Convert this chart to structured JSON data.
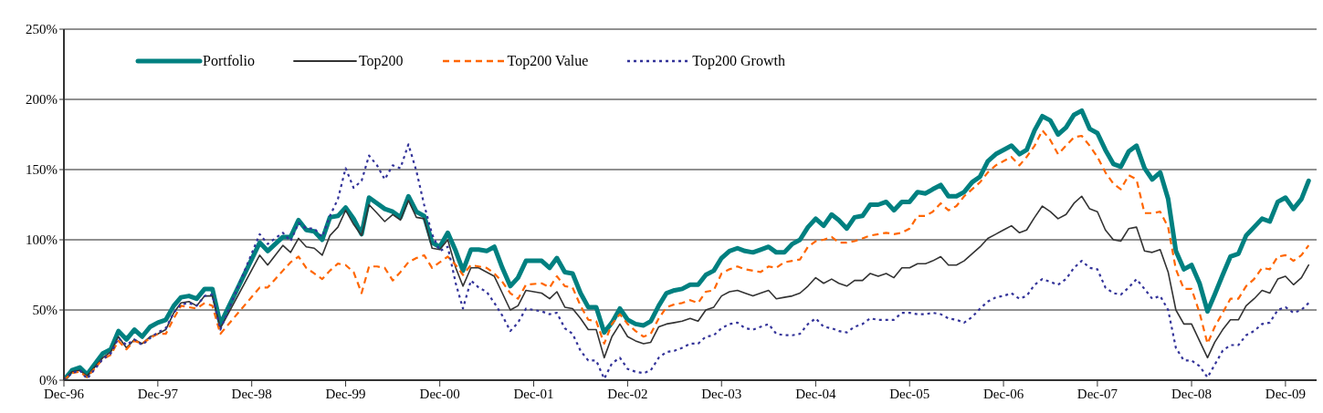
{
  "chart_data": {
    "type": "line",
    "x": [
      "1996-12",
      "1997-01",
      "1997-02",
      "1997-03",
      "1997-05",
      "1997-06",
      "1997-07",
      "1997-08",
      "1997-09",
      "1997-10",
      "1997-11",
      "1997-12",
      "1998-01",
      "1998-02",
      "1998-03",
      "1998-04",
      "1998-05",
      "1998-06",
      "1998-07",
      "1998-08",
      "1999-01",
      "1999-02",
      "1999-04",
      "1999-05",
      "1999-06",
      "1999-07",
      "1999-08",
      "1999-09",
      "1999-10",
      "1999-11",
      "1999-12",
      "2000-01",
      "2000-02",
      "2000-03",
      "2000-04",
      "2000-05",
      "2000-06",
      "2000-07",
      "2000-08",
      "2000-09",
      "2000-10",
      "2000-11",
      "2000-12",
      "2001-01",
      "2001-02",
      "2001-03",
      "2001-04",
      "2001-05",
      "2001-06",
      "2001-07",
      "2001-08",
      "2001-09",
      "2001-10",
      "2001-11",
      "2002-01",
      "2002-02",
      "2002-03",
      "2002-04",
      "2002-05",
      "2002-06",
      "2002-07",
      "2002-08",
      "2002-09",
      "2002-10",
      "2002-11",
      "2002-12",
      "2003-01",
      "2003-02",
      "2003-03",
      "2003-04",
      "2003-05",
      "2003-06",
      "2003-07",
      "2003-08",
      "2003-09",
      "2003-10",
      "2003-11",
      "2003-12",
      "2004-01",
      "2004-02",
      "2004-03",
      "2004-04",
      "2004-05",
      "2004-06",
      "2004-07",
      "2004-08",
      "2004-09",
      "2004-10",
      "2004-11",
      "2004-12",
      "2005-01",
      "2005-02",
      "2005-03",
      "2005-04",
      "2005-05",
      "2005-06",
      "2005-07",
      "2005-08",
      "2005-09",
      "2005-10",
      "2005-11",
      "2005-12",
      "2006-01",
      "2006-02",
      "2006-03",
      "2006-04",
      "2006-05",
      "2006-06",
      "2006-07",
      "2006-08",
      "2006-09",
      "2006-10",
      "2006-11",
      "2006-12",
      "2007-01",
      "2007-02",
      "2007-03",
      "2007-04",
      "2007-05",
      "2007-06",
      "2007-07",
      "2007-08",
      "2007-09",
      "2007-10",
      "2007-11",
      "2007-12",
      "2008-01",
      "2008-02",
      "2008-03",
      "2008-04",
      "2008-05",
      "2008-06",
      "2008-07",
      "2008-08",
      "2008-09",
      "2008-10",
      "2008-11",
      "2008-12",
      "2009-01",
      "2009-02",
      "2009-03",
      "2009-04",
      "2009-05",
      "2009-06",
      "2009-07",
      "2009-08",
      "2009-09",
      "2009-10",
      "2009-11",
      "2009-12",
      "2010-01",
      "2010-02",
      "2010-03"
    ],
    "series": [
      {
        "name": "Portfolio",
        "color": "#008080",
        "line_style": "solid",
        "values": [
          0,
          7,
          9,
          4,
          19,
          22,
          35,
          29,
          36,
          31,
          38,
          41,
          43,
          53,
          59,
          60,
          58,
          65,
          65,
          40,
          98,
          92,
          102,
          102,
          114,
          107,
          106,
          100,
          116,
          117,
          123,
          115,
          104,
          130,
          126,
          122,
          120,
          116,
          131,
          120,
          117,
          98,
          95,
          105,
          92,
          78,
          93,
          93,
          92,
          95,
          80,
          67,
          73,
          85,
          85,
          80,
          87,
          77,
          76,
          62,
          52,
          52,
          34,
          41,
          51,
          43,
          40,
          39,
          42,
          53,
          62,
          64,
          65,
          68,
          68,
          75,
          78,
          87,
          92,
          94,
          92,
          91,
          93,
          95,
          91,
          91,
          97,
          100,
          109,
          115,
          110,
          118,
          114,
          108,
          116,
          117,
          125,
          125,
          127,
          121,
          127,
          127,
          134,
          133,
          136,
          139,
          131,
          131,
          134,
          141,
          145,
          156,
          161,
          164,
          167,
          161,
          164,
          178,
          188,
          185,
          175,
          180,
          189,
          192,
          179,
          176,
          164,
          154,
          152,
          163,
          167,
          151,
          143,
          148,
          129,
          92,
          79,
          82,
          69,
          49,
          61,
          75,
          88,
          90,
          103,
          109,
          115,
          113,
          127,
          130,
          122,
          129,
          142
        ]
      },
      {
        "name": "Top200",
        "color": "#333333",
        "line_style": "solid",
        "values": [
          0,
          6,
          7,
          3,
          16,
          20,
          31,
          23,
          29,
          26,
          31,
          33,
          36,
          48,
          55,
          56,
          53,
          60,
          60,
          37,
          89,
          82,
          96,
          91,
          101,
          95,
          94,
          89,
          103,
          109,
          121,
          111,
          103,
          125,
          119,
          113,
          118,
          114,
          128,
          116,
          115,
          94,
          93,
          100,
          80,
          67,
          80,
          80,
          77,
          74,
          62,
          50,
          53,
          64,
          62,
          58,
          63,
          52,
          51,
          44,
          36,
          36,
          16,
          31,
          40,
          31,
          28,
          26,
          27,
          38,
          40,
          41,
          42,
          44,
          42,
          50,
          52,
          60,
          63,
          64,
          62,
          60,
          62,
          64,
          58,
          59,
          60,
          62,
          67,
          73,
          69,
          72,
          69,
          67,
          71,
          71,
          76,
          74,
          76,
          73,
          80,
          80,
          83,
          83,
          85,
          88,
          82,
          82,
          85,
          90,
          95,
          101,
          104,
          107,
          110,
          105,
          107,
          116,
          124,
          120,
          115,
          118,
          126,
          131,
          122,
          120,
          107,
          100,
          99,
          108,
          109,
          92,
          91,
          93,
          77,
          50,
          40,
          40,
          28,
          16,
          27,
          36,
          43,
          43,
          53,
          58,
          64,
          62,
          72,
          74,
          68,
          73,
          82
        ]
      },
      {
        "name": "Top200 Value",
        "color": "#ff6600",
        "line_style": "dashed",
        "values": [
          0,
          5,
          6,
          2,
          15,
          18,
          28,
          22,
          28,
          26,
          30,
          33,
          33,
          44,
          53,
          52,
          51,
          55,
          53,
          33,
          66,
          66,
          78,
          84,
          88,
          80,
          76,
          72,
          78,
          83,
          82,
          77,
          62,
          81,
          81,
          80,
          71,
          77,
          84,
          87,
          89,
          80,
          84,
          88,
          82,
          75,
          82,
          81,
          80,
          76,
          70,
          62,
          58,
          68,
          69,
          66,
          74,
          67,
          66,
          53,
          43,
          42,
          26,
          40,
          47,
          40,
          35,
          31,
          33,
          44,
          52,
          54,
          55,
          57,
          55,
          63,
          64,
          76,
          79,
          81,
          79,
          78,
          77,
          81,
          80,
          84,
          85,
          86,
          95,
          99,
          100,
          102,
          98,
          98,
          99,
          101,
          103,
          104,
          105,
          104,
          105,
          108,
          117,
          117,
          120,
          126,
          121,
          124,
          131,
          136,
          141,
          148,
          153,
          156,
          159,
          153,
          159,
          167,
          178,
          171,
          161,
          167,
          173,
          174,
          167,
          159,
          148,
          140,
          136,
          146,
          143,
          119,
          119,
          120,
          109,
          79,
          65,
          65,
          48,
          26,
          38,
          48,
          58,
          58,
          67,
          72,
          80,
          79,
          88,
          89,
          85,
          89,
          96
        ]
      },
      {
        "name": "Top200 Growth",
        "color": "#333399",
        "line_style": "dotted",
        "values": [
          0,
          5,
          7,
          1,
          15,
          19,
          30,
          25,
          29,
          25,
          30,
          34,
          37,
          48,
          54,
          55,
          53,
          60,
          61,
          36,
          104,
          97,
          105,
          99,
          112,
          108,
          108,
          102,
          117,
          129,
          151,
          137,
          142,
          160,
          153,
          143,
          153,
          151,
          168,
          149,
          125,
          104,
          92,
          95,
          69,
          51,
          71,
          66,
          63,
          55,
          46,
          35,
          41,
          51,
          49,
          47,
          48,
          37,
          33,
          21,
          14,
          14,
          1,
          12,
          16,
          8,
          6,
          5,
          7,
          16,
          20,
          21,
          23,
          26,
          26,
          31,
          32,
          37,
          40,
          41,
          37,
          36,
          38,
          40,
          33,
          32,
          32,
          33,
          40,
          44,
          38,
          37,
          35,
          34,
          38,
          40,
          44,
          43,
          43,
          43,
          48,
          48,
          47,
          47,
          48,
          47,
          44,
          43,
          41,
          45,
          51,
          56,
          59,
          60,
          62,
          58,
          60,
          68,
          72,
          70,
          68,
          72,
          80,
          85,
          80,
          79,
          66,
          62,
          61,
          66,
          72,
          65,
          58,
          60,
          50,
          23,
          14,
          14,
          10,
          2,
          11,
          21,
          25,
          25,
          32,
          35,
          40,
          41,
          50,
          52,
          48,
          50,
          55
        ]
      }
    ],
    "xlim": [
      "1996-12",
      "2010-04"
    ],
    "xticks": [
      {
        "value": "1996-12",
        "label": "Dec-96"
      },
      {
        "value": "1997-12",
        "label": "Dec-97"
      },
      {
        "value": "1998-12",
        "label": "Dec-98"
      },
      {
        "value": "1999-12",
        "label": "Dec-99"
      },
      {
        "value": "2000-12",
        "label": "Dec-00"
      },
      {
        "value": "2001-12",
        "label": "Dec-01"
      },
      {
        "value": "2002-12",
        "label": "Dec-02"
      },
      {
        "value": "2003-12",
        "label": "Dec-03"
      },
      {
        "value": "2004-12",
        "label": "Dec-04"
      },
      {
        "value": "2005-12",
        "label": "Dec-05"
      },
      {
        "value": "2006-12",
        "label": "Dec-06"
      },
      {
        "value": "2007-12",
        "label": "Dec-07"
      },
      {
        "value": "2008-12",
        "label": "Dec-08"
      },
      {
        "value": "2009-12",
        "label": "Dec-09"
      }
    ],
    "ylim": [
      0,
      250
    ],
    "yticks": [
      {
        "value": 0,
        "label": "0%"
      },
      {
        "value": 50,
        "label": "50%"
      },
      {
        "value": 100,
        "label": "100%"
      },
      {
        "value": 150,
        "label": "150%"
      },
      {
        "value": 200,
        "label": "200%"
      },
      {
        "value": 250,
        "label": "250%"
      }
    ],
    "grid": "y",
    "legend": "top"
  }
}
